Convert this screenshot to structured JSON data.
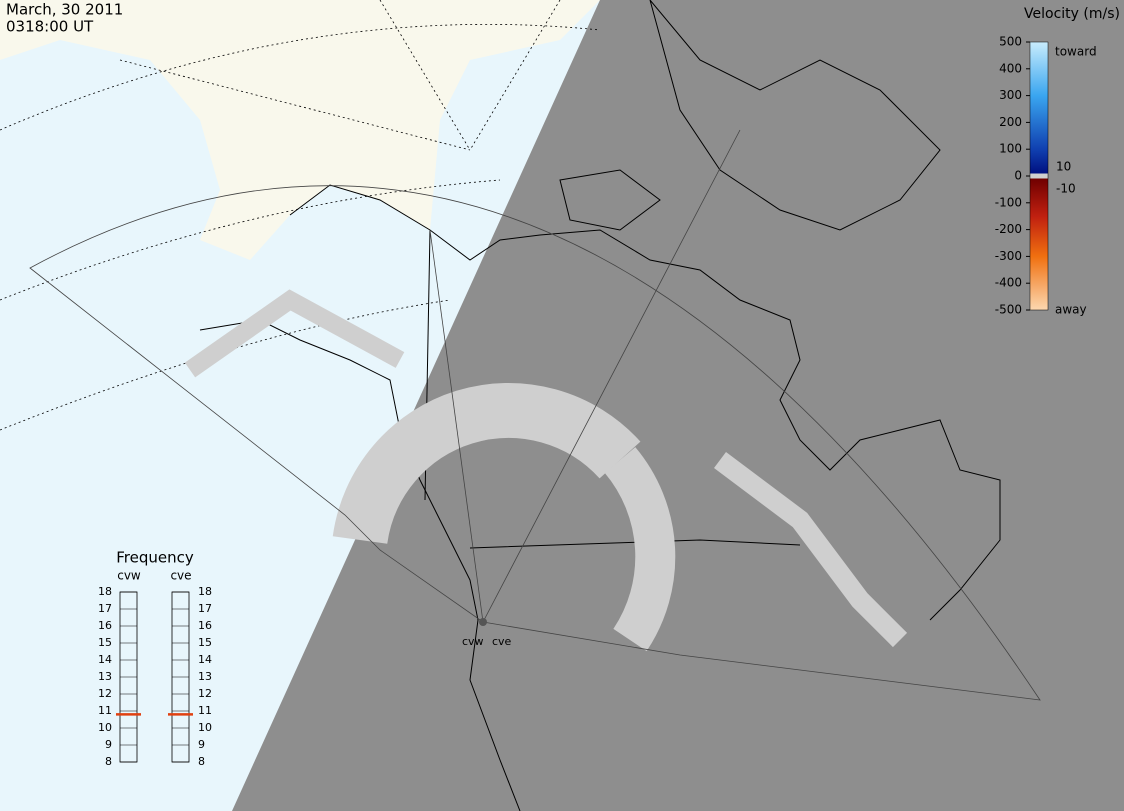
{
  "header": {
    "date": "March, 30 2011",
    "time": "0318:00 UT"
  },
  "colorbar": {
    "title": "Velocity (m/s)",
    "ticks": [
      500,
      400,
      300,
      200,
      100,
      0,
      -100,
      -200,
      -300,
      -400,
      -500
    ],
    "near_zero": [
      10,
      -10
    ],
    "toward": "toward",
    "away": "away"
  },
  "frequency": {
    "title": "Frequency",
    "ticks": [
      8,
      9,
      10,
      11,
      12,
      13,
      14,
      15,
      16,
      17,
      18
    ],
    "radars": [
      {
        "name": "cvw",
        "value": 10.8
      },
      {
        "name": "cve",
        "value": 10.8
      }
    ]
  }
}
